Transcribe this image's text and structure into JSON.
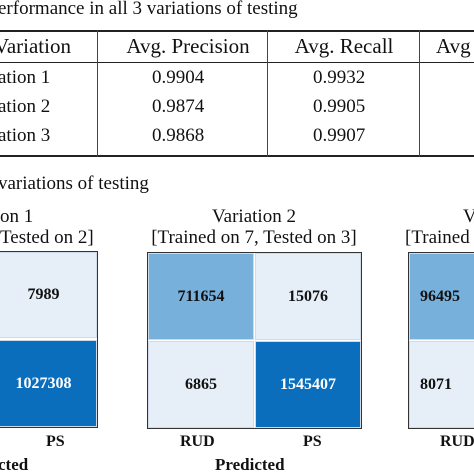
{
  "table_caption": "erformance in all 3 variations of testing",
  "table": {
    "headers": [
      "Variation",
      "Avg. Precision",
      "Avg. Recall",
      "Avg"
    ],
    "rows": [
      [
        "ation 1",
        "0.9904",
        "0.9932"
      ],
      [
        "ation 2",
        "0.9874",
        "0.9905"
      ],
      [
        "ation 3",
        "0.9868",
        "0.9907"
      ]
    ]
  },
  "figure_caption": "variations of testing",
  "matrices": [
    {
      "title": "on 1",
      "subtitle": "Tested on 2]",
      "cells": [
        "7989",
        "1027308"
      ],
      "xticks": [
        "PS"
      ],
      "xlabel": "cted"
    },
    {
      "title": "Variation 2",
      "subtitle": "[Trained on 7, Tested on 3]",
      "cells": [
        "711654",
        "15076",
        "6865",
        "1545407"
      ],
      "xticks": [
        "RUD",
        "PS"
      ],
      "xlabel": "Predicted"
    },
    {
      "title": "V",
      "subtitle": "[Trained",
      "cells": [
        "96495",
        "8071"
      ],
      "xticks": [
        "RUD"
      ],
      "xlabel": ""
    }
  ],
  "colors": {
    "dark": "#0a6ebd",
    "mid": "#78b0dc",
    "light": "#e6eff8",
    "text_on_dark": "#ffffff",
    "text_on_light": "#111111"
  }
}
